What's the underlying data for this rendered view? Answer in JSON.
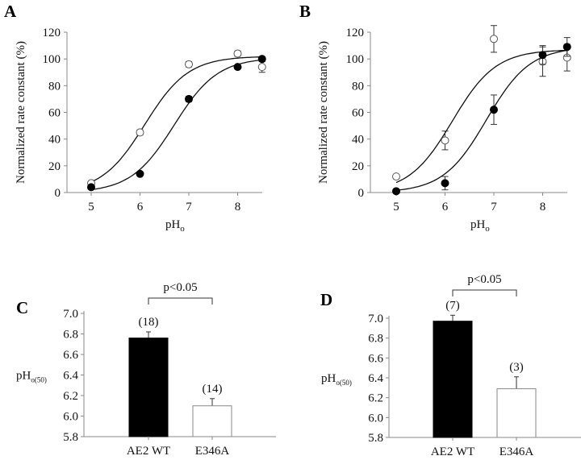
{
  "chart_data": [
    {
      "panel": "A",
      "type": "scatter",
      "xlabel": "pH",
      "xlabel_sub": "o",
      "ylabel": "Normalized rate constant (%)",
      "xlim": [
        4.5,
        8.5
      ],
      "ylim": [
        0,
        120
      ],
      "xticks": [
        5,
        6,
        7,
        8
      ],
      "yticks": [
        0,
        20,
        40,
        60,
        80,
        100,
        120
      ],
      "series": [
        {
          "name": "open",
          "marker": "open-circle",
          "x": [
            5,
            6,
            7,
            8,
            8.5
          ],
          "y": [
            7,
            45,
            96,
            104,
            94
          ],
          "err": [
            1,
            2,
            2,
            2,
            4
          ],
          "fit_pK": 6.1,
          "fit_max": 102
        },
        {
          "name": "filled",
          "marker": "filled-circle",
          "x": [
            5,
            6,
            7,
            8,
            8.5
          ],
          "y": [
            4,
            14,
            70,
            94,
            100
          ],
          "err": [
            1,
            1,
            2,
            1,
            1
          ],
          "fit_pK": 6.7,
          "fit_max": 101
        }
      ]
    },
    {
      "panel": "B",
      "type": "scatter",
      "xlabel": "pH",
      "xlabel_sub": "o",
      "ylabel": "Normalized rate constant (%)",
      "xlim": [
        4.5,
        8.5
      ],
      "ylim": [
        0,
        120
      ],
      "xticks": [
        5,
        6,
        7,
        8
      ],
      "yticks": [
        0,
        20,
        40,
        60,
        80,
        100,
        120
      ],
      "series": [
        {
          "name": "open",
          "marker": "open-circle",
          "x": [
            5,
            6,
            7,
            8,
            8.5
          ],
          "y": [
            12,
            39,
            115,
            98,
            101
          ],
          "err": [
            1,
            7,
            10,
            11,
            10
          ],
          "fit_pK": 6.15,
          "fit_max": 107
        },
        {
          "name": "filled",
          "marker": "filled-circle",
          "x": [
            5,
            6,
            7,
            8,
            8.5
          ],
          "y": [
            1,
            7,
            62,
            103,
            109
          ],
          "err": [
            1,
            5,
            11,
            7,
            7
          ],
          "fit_pK": 6.85,
          "fit_max": 109
        }
      ]
    },
    {
      "panel": "C",
      "type": "bar",
      "ylabel": "pH",
      "ylabel_sub": "o(50)",
      "ylim": [
        5.8,
        7.0
      ],
      "yticks": [
        "5.8",
        "6.0",
        "6.2",
        "6.4",
        "6.6",
        "6.8",
        "7.0"
      ],
      "categories": [
        "AE2 WT",
        "E346A"
      ],
      "values": [
        6.76,
        6.1
      ],
      "errors": [
        0.06,
        0.07
      ],
      "n_labels": [
        "(18)",
        "(14)"
      ],
      "fills": [
        "#000000",
        "#ffffff"
      ],
      "significance": "p<0.05"
    },
    {
      "panel": "D",
      "type": "bar",
      "ylabel": "pH",
      "ylabel_sub": "o(50)",
      "ylim": [
        5.8,
        7.0
      ],
      "yticks": [
        "5.8",
        "6.0",
        "6.2",
        "6.4",
        "6.6",
        "6.8",
        "7.0"
      ],
      "categories": [
        "AE2 WT",
        "E346A"
      ],
      "values": [
        6.97,
        6.29
      ],
      "errors": [
        0.06,
        0.12
      ],
      "n_labels": [
        "(7)",
        "(3)"
      ],
      "fills": [
        "#000000",
        "#ffffff"
      ],
      "significance": "p<0.05"
    }
  ]
}
